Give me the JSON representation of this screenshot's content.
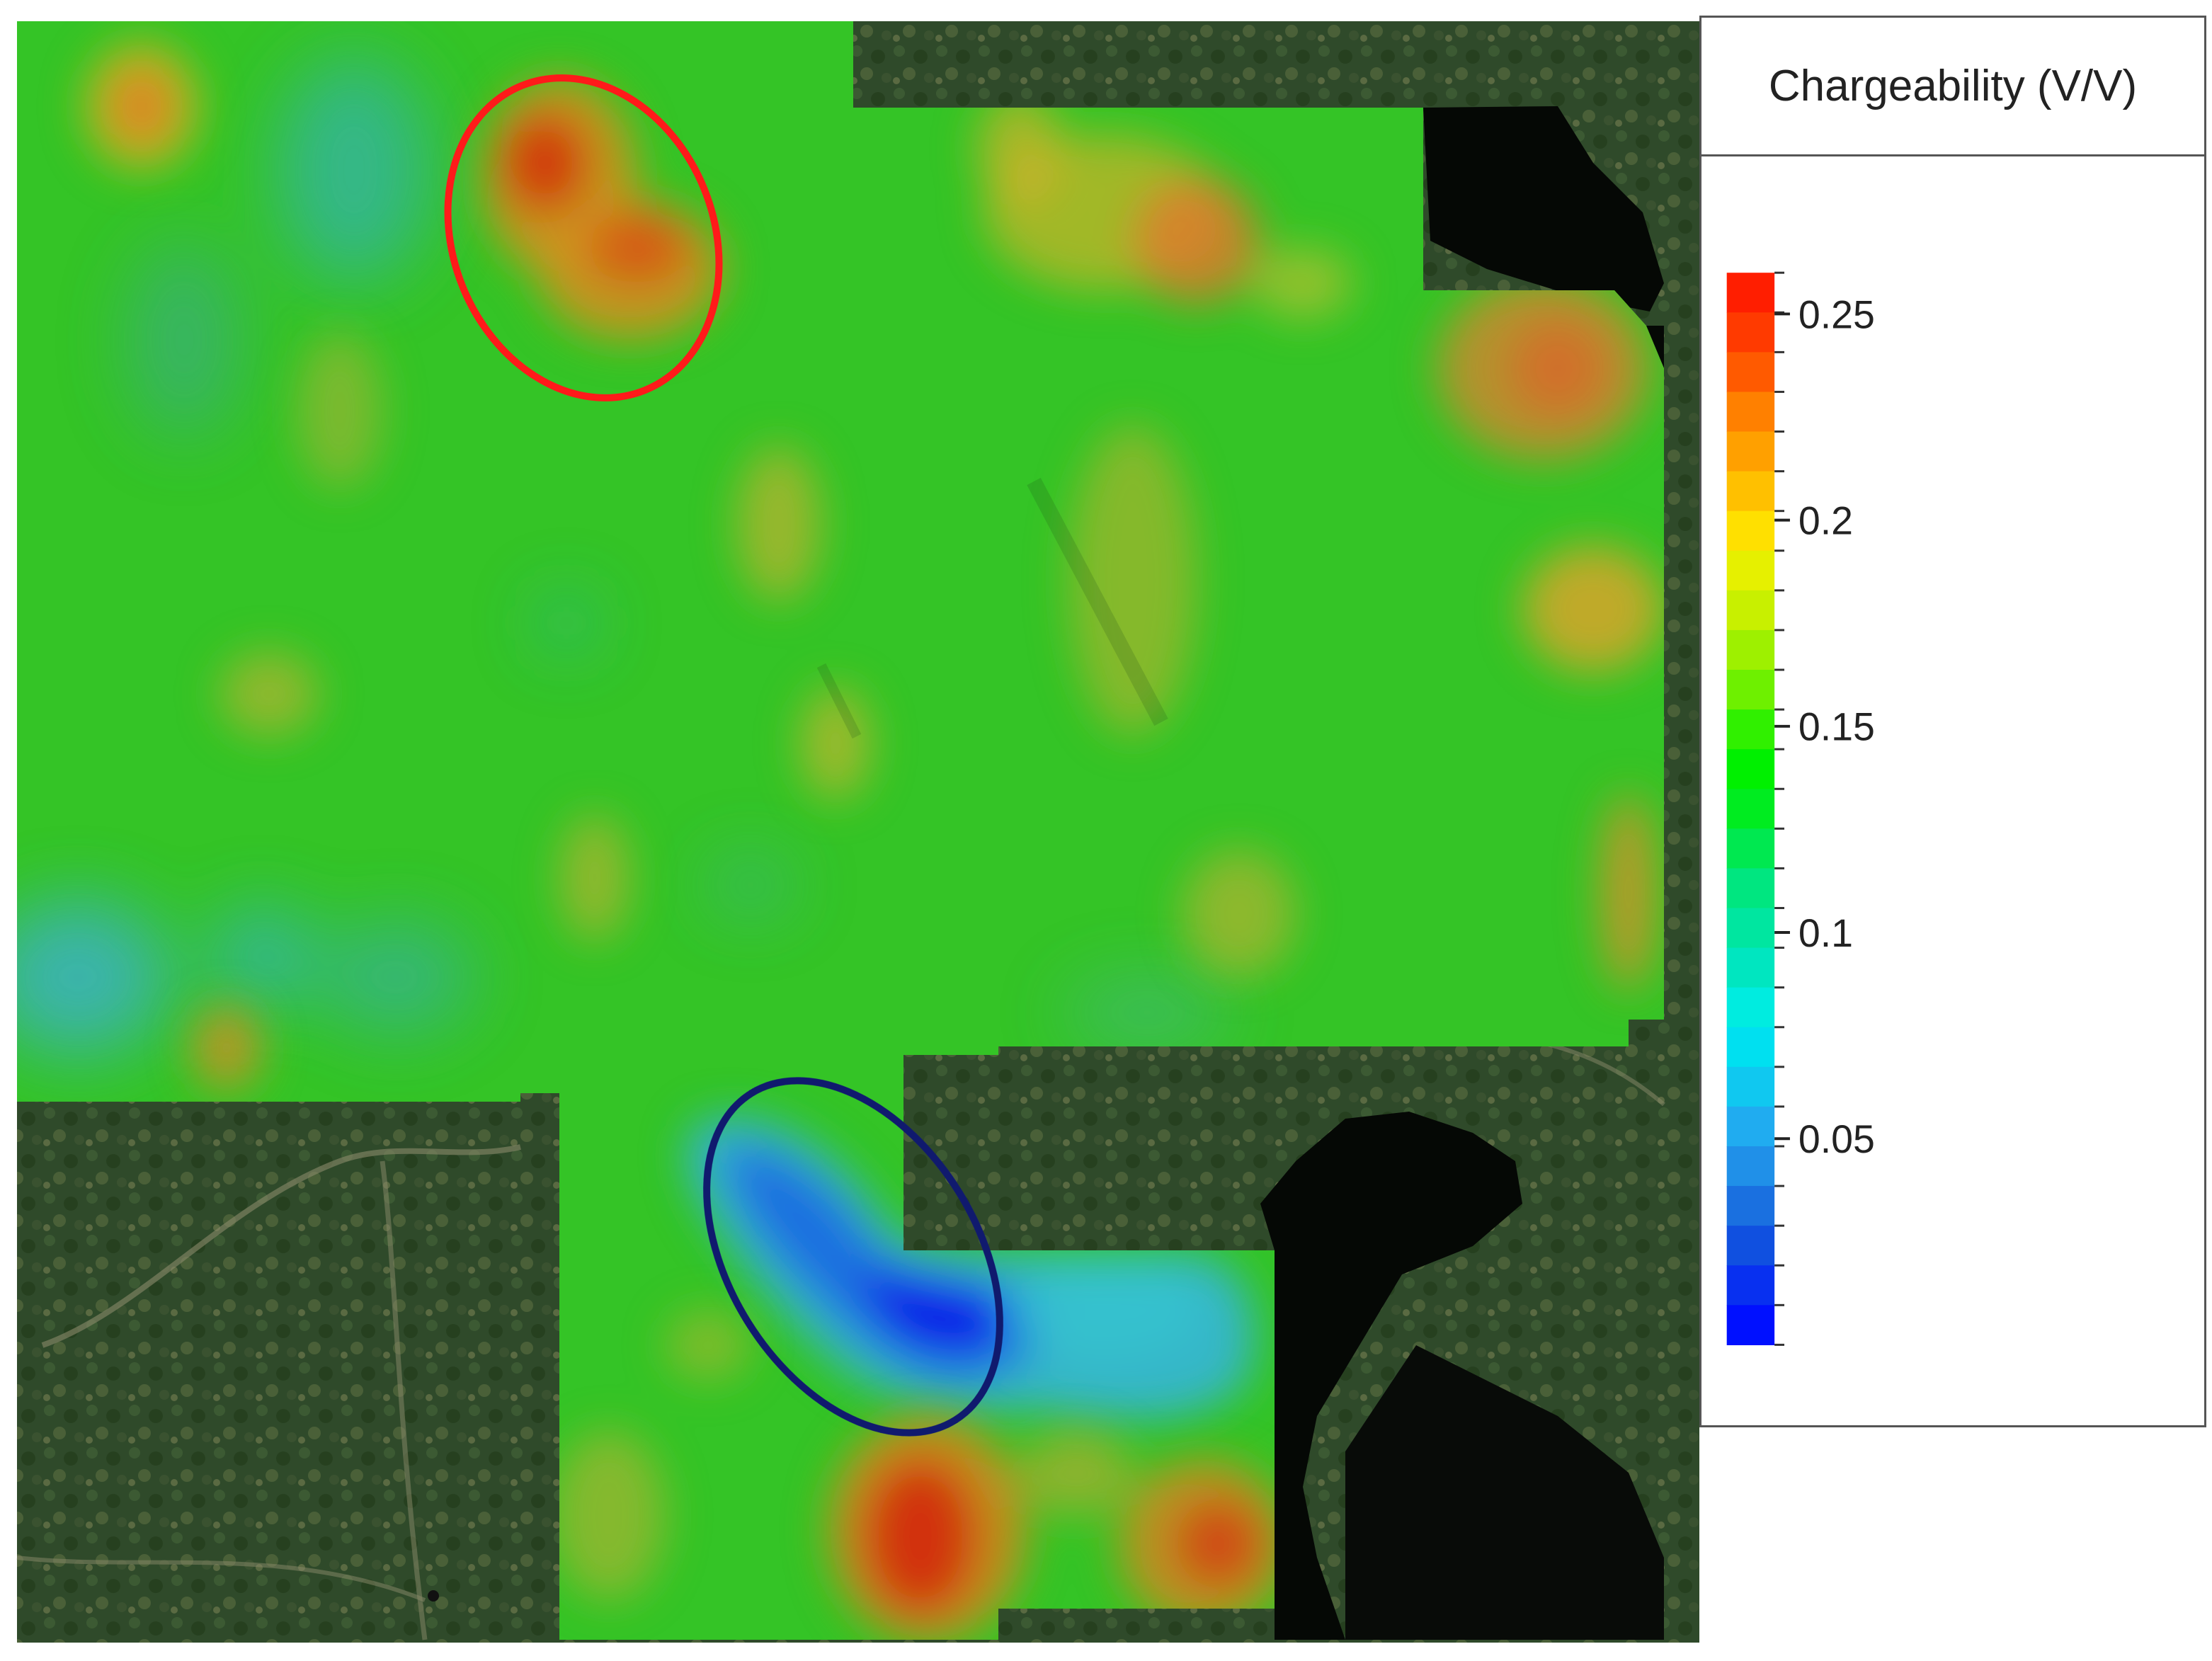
{
  "map": {
    "layer_name": "chargeability-overlay",
    "basemap": "satellite imagery",
    "colormap": [
      "#0000ff",
      "#1a63e0",
      "#22b0ec",
      "#00e6d8",
      "#00e680",
      "#00e600",
      "#7ee600",
      "#e6e600",
      "#ffb400",
      "#ff6a00",
      "#ff1e00"
    ],
    "annotations": [
      {
        "name": "red-ellipse-high-anomaly",
        "color": "#ff1a1a",
        "meaning": "high chargeability"
      },
      {
        "name": "blue-ellipse-low-anomaly",
        "color": "#101a6e",
        "meaning": "low chargeability"
      }
    ]
  },
  "legend": {
    "title": "Chargeability (V/V)",
    "min": 0,
    "max": 0.26,
    "ticks": [
      {
        "value": 0.25,
        "label": "0.25"
      },
      {
        "value": 0.2,
        "label": "0.2"
      },
      {
        "value": 0.15,
        "label": "0.15"
      },
      {
        "value": 0.1,
        "label": "0.1"
      },
      {
        "value": 0.05,
        "label": "0.05"
      }
    ],
    "bins": [
      "#ff1e00",
      "#ff3a00",
      "#ff5a00",
      "#ff8000",
      "#ffa000",
      "#ffc000",
      "#ffe000",
      "#e6f000",
      "#c8f000",
      "#9ef000",
      "#6ef000",
      "#30f000",
      "#00f000",
      "#00ec20",
      "#00e850",
      "#00e680",
      "#00e6a0",
      "#00e6c0",
      "#00ece0",
      "#00e0f0",
      "#10c8f0",
      "#20acf0",
      "#2090e8",
      "#1a70e0",
      "#1050e0",
      "#0830f0",
      "#0010ff"
    ]
  }
}
